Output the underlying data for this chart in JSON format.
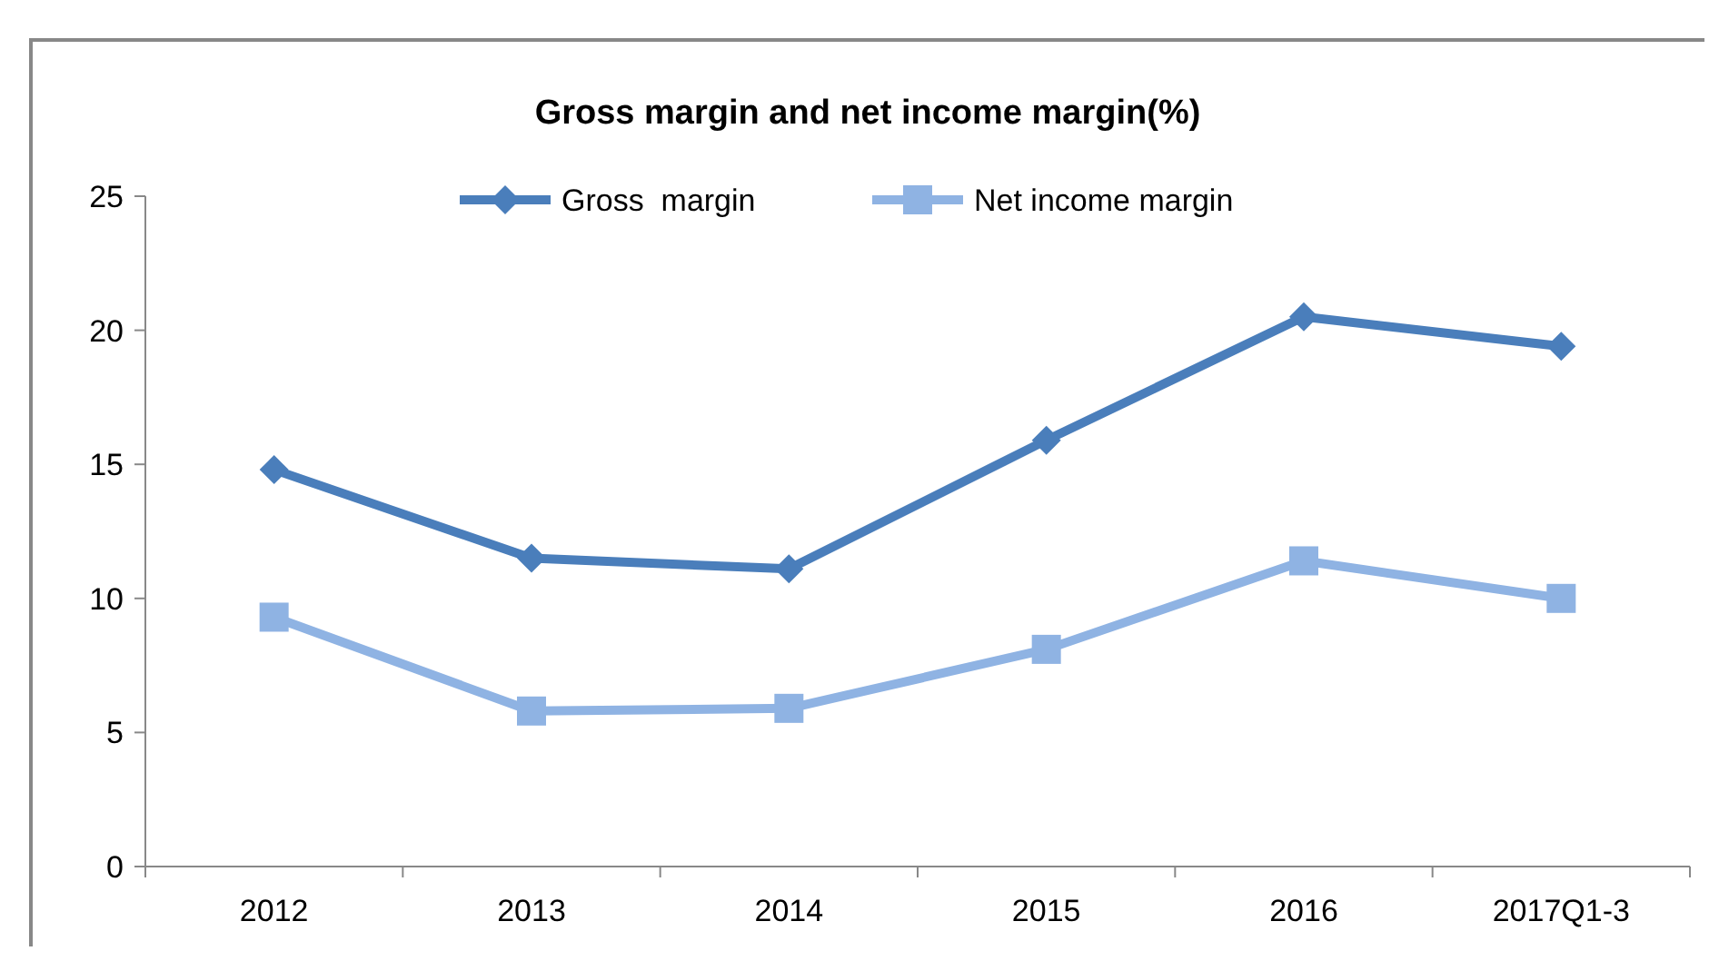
{
  "chart_data": {
    "type": "line",
    "title": "Gross margin and net income margin(%)",
    "categories": [
      "2012",
      "2013",
      "2014",
      "2015",
      "2016",
      "2017Q1-3"
    ],
    "series": [
      {
        "name": "Gross  margin",
        "color": "#4a7ebb",
        "marker": "diamond",
        "values": [
          14.8,
          11.5,
          11.1,
          15.9,
          20.5,
          19.4
        ]
      },
      {
        "name": "Net income margin",
        "color": "#8fb3e3",
        "marker": "square",
        "values": [
          9.3,
          5.8,
          5.9,
          8.1,
          11.4,
          10.0
        ]
      }
    ],
    "ylim": [
      0,
      25
    ],
    "yticks": [
      0,
      5,
      10,
      15,
      20,
      25
    ],
    "grid": false,
    "legend": "top"
  }
}
